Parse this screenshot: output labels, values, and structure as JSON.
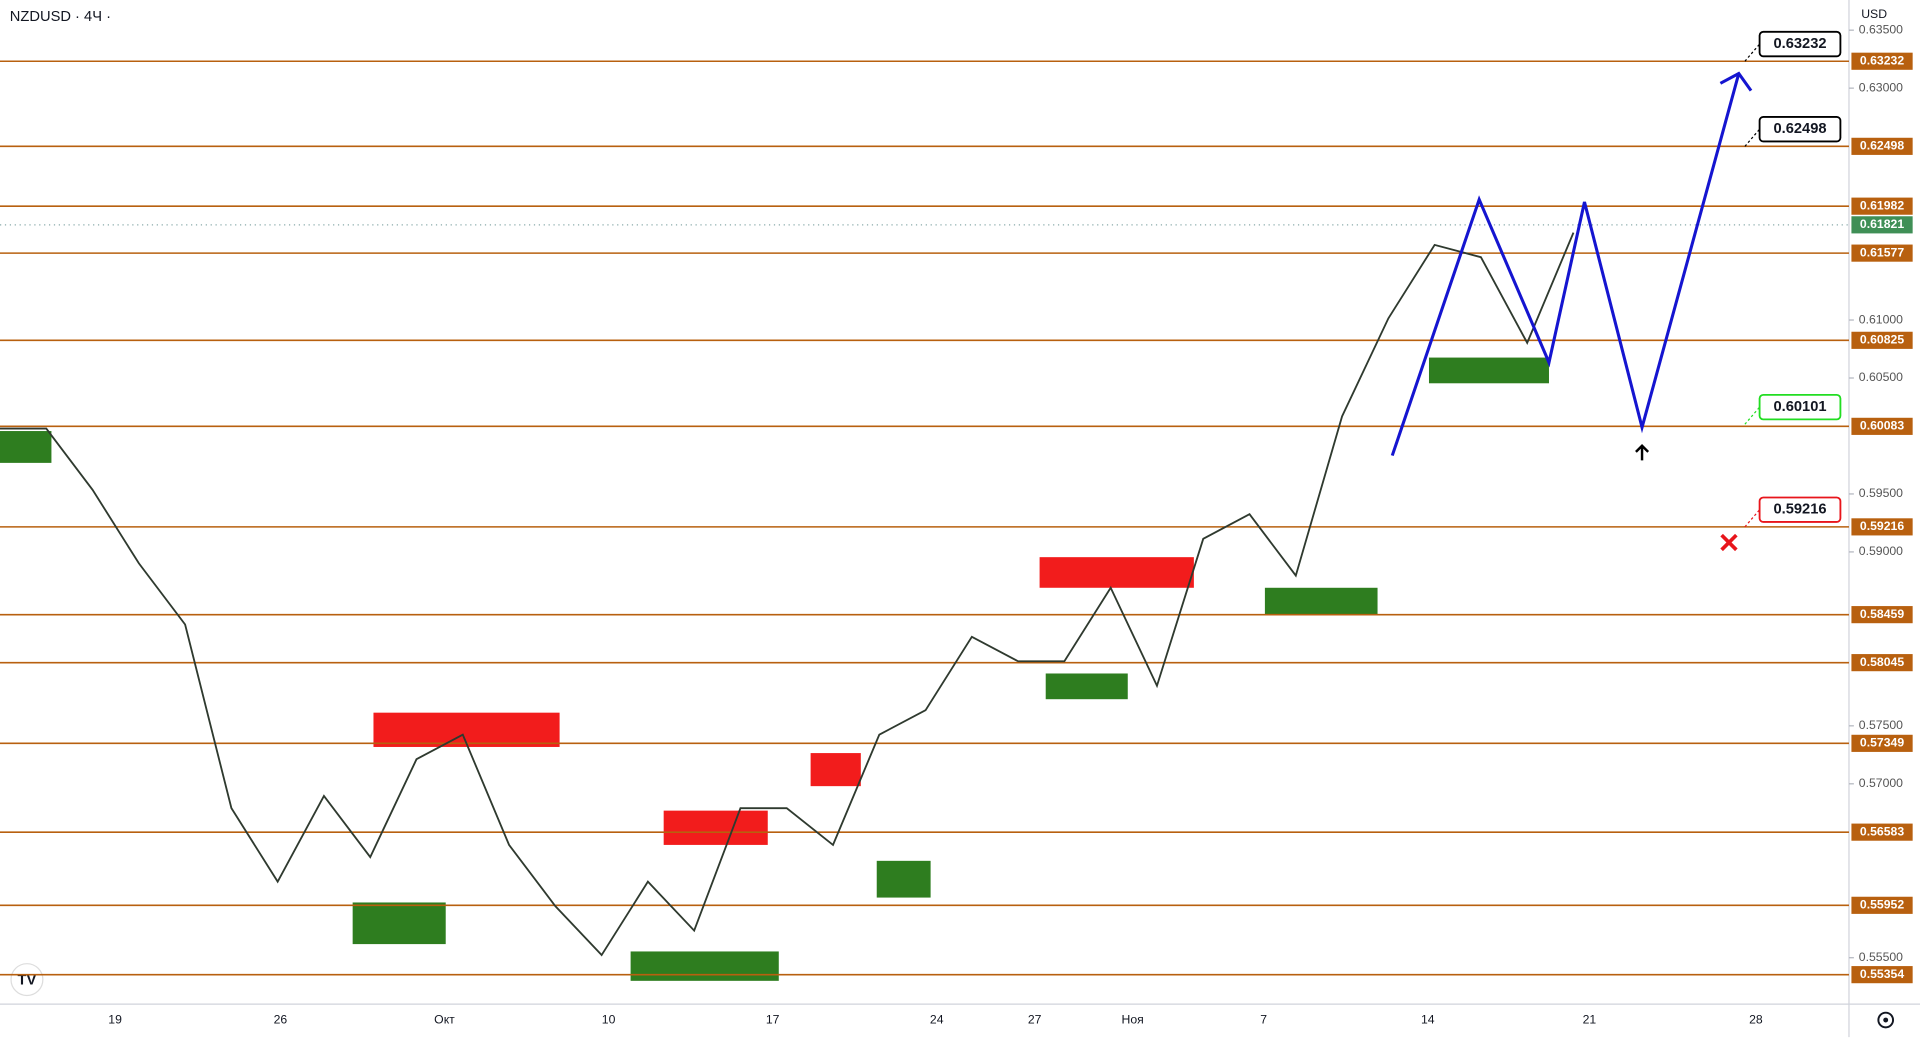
{
  "header": {
    "symbol": "NZDUSD · 4Ч ·",
    "currency": "USD"
  },
  "chart_data": {
    "type": "line",
    "ylim": [
      0.551,
      0.6376
    ],
    "yticks": [
      {
        "value": 0.635,
        "label": "0.63500"
      },
      {
        "value": 0.63,
        "label": "0.63000"
      },
      {
        "value": 0.61,
        "label": "0.61000"
      },
      {
        "value": 0.605,
        "label": "0.60500"
      },
      {
        "value": 0.595,
        "label": "0.59500"
      },
      {
        "value": 0.59,
        "label": "0.59000"
      },
      {
        "value": 0.575,
        "label": "0.57500"
      },
      {
        "value": 0.57,
        "label": "0.57000"
      },
      {
        "value": 0.555,
        "label": "0.55500"
      }
    ],
    "x_labels": [
      "19",
      "26",
      "Окт",
      "10",
      "17",
      "24",
      "27",
      "Ноя",
      "7",
      "14",
      "21",
      "28"
    ],
    "levels": [
      0.63232,
      0.62498,
      0.61982,
      0.61577,
      0.60825,
      0.60083,
      0.59216,
      0.58459,
      0.58045,
      0.57349,
      0.56583,
      0.55952,
      0.55354
    ],
    "current_price": 0.61821,
    "callouts": [
      {
        "value": 0.63232,
        "color": "#000000"
      },
      {
        "value": 0.62498,
        "color": "#000000"
      },
      {
        "value": 0.60101,
        "color": "#22dd22"
      },
      {
        "value": 0.59216,
        "color": "#e8151b"
      }
    ],
    "series": [
      {
        "name": "NZDUSD",
        "color": "#2f3a2f",
        "values": [
          0.60064,
          0.60064,
          0.59536,
          0.58902,
          0.58374,
          0.5679,
          0.56156,
          0.56895,
          0.56368,
          0.57212,
          0.57424,
          0.56473,
          0.55945,
          0.55523,
          0.56156,
          0.55734,
          0.5679,
          0.5679,
          0.56473,
          0.57424,
          0.57635,
          0.58268,
          0.58057,
          0.58057,
          0.58691,
          0.57846,
          0.59113,
          0.59325,
          0.58796,
          0.60169,
          0.61014,
          0.61648,
          0.61542,
          0.60803,
          0.61754
        ]
      }
    ],
    "forecast": {
      "color": "#1515d0",
      "values": [
        0.59831,
        0.62039,
        0.60634,
        0.62018,
        0.60074,
        0.63126
      ]
    }
  }
}
